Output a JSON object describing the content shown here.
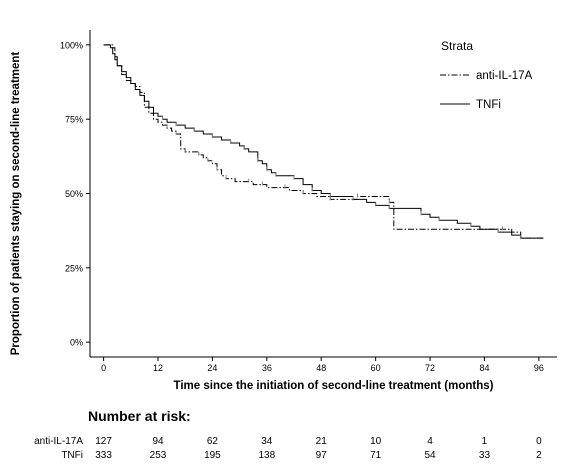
{
  "chart_data": {
    "type": "line",
    "subtype": "kaplan-meier",
    "xlabel": "Time since the initiation of second-line treatment (months)",
    "ylabel": "Proportion of patients staying on second-line treatment",
    "xlim": [
      -3,
      100
    ],
    "ylim": [
      -0.05,
      1.05
    ],
    "xticks": [
      0,
      12,
      24,
      36,
      48,
      60,
      72,
      84,
      96
    ],
    "yticks": [
      0,
      0.25,
      0.5,
      0.75,
      1.0
    ],
    "ytick_labels": [
      "0%",
      "25%",
      "50%",
      "75%",
      "100%"
    ],
    "grid": false,
    "legend": {
      "title": "Strata",
      "placement": "top-right",
      "entries": [
        {
          "label": "anti-IL-17A",
          "style": "dashdot"
        },
        {
          "label": "TNFi",
          "style": "solid"
        }
      ]
    },
    "series": [
      {
        "name": "anti-IL-17A",
        "style": "dashdot",
        "points": [
          [
            0,
            1.0
          ],
          [
            2,
            0.99
          ],
          [
            2.5,
            0.96
          ],
          [
            3,
            0.93
          ],
          [
            4,
            0.9
          ],
          [
            5,
            0.88
          ],
          [
            6,
            0.87
          ],
          [
            7,
            0.86
          ],
          [
            8,
            0.84
          ],
          [
            9,
            0.79
          ],
          [
            10,
            0.77
          ],
          [
            11,
            0.75
          ],
          [
            12,
            0.74
          ],
          [
            13,
            0.73
          ],
          [
            14,
            0.72
          ],
          [
            15,
            0.71
          ],
          [
            16,
            0.7
          ],
          [
            17,
            0.65
          ],
          [
            18,
            0.64
          ],
          [
            20,
            0.64
          ],
          [
            21,
            0.63
          ],
          [
            22,
            0.62
          ],
          [
            23,
            0.61
          ],
          [
            24,
            0.6
          ],
          [
            25,
            0.58
          ],
          [
            26,
            0.56
          ],
          [
            27,
            0.55
          ],
          [
            29,
            0.54
          ],
          [
            32,
            0.54
          ],
          [
            33,
            0.53
          ],
          [
            35,
            0.53
          ],
          [
            36,
            0.52
          ],
          [
            40,
            0.52
          ],
          [
            41,
            0.51
          ],
          [
            44,
            0.5
          ],
          [
            47,
            0.49
          ],
          [
            50,
            0.48
          ],
          [
            55,
            0.48
          ],
          [
            56,
            0.49
          ],
          [
            62,
            0.49
          ],
          [
            63,
            0.47
          ],
          [
            64,
            0.38
          ],
          [
            88,
            0.38
          ],
          [
            90,
            0.37
          ],
          [
            92,
            0.35
          ],
          [
            97,
            0.35
          ]
        ]
      },
      {
        "name": "TNFi",
        "style": "solid",
        "points": [
          [
            0,
            1.0
          ],
          [
            1.5,
            0.99
          ],
          [
            2,
            0.97
          ],
          [
            2.5,
            0.95
          ],
          [
            3,
            0.93
          ],
          [
            4,
            0.91
          ],
          [
            5,
            0.89
          ],
          [
            6,
            0.87
          ],
          [
            7,
            0.85
          ],
          [
            8,
            0.83
          ],
          [
            9,
            0.81
          ],
          [
            10,
            0.79
          ],
          [
            11,
            0.77
          ],
          [
            12,
            0.76
          ],
          [
            13,
            0.75
          ],
          [
            14,
            0.74
          ],
          [
            16,
            0.73
          ],
          [
            18,
            0.72
          ],
          [
            20,
            0.71
          ],
          [
            22,
            0.7
          ],
          [
            24,
            0.69
          ],
          [
            26,
            0.68
          ],
          [
            28,
            0.67
          ],
          [
            30,
            0.66
          ],
          [
            31,
            0.65
          ],
          [
            32,
            0.64
          ],
          [
            34,
            0.61
          ],
          [
            35,
            0.6
          ],
          [
            36,
            0.58
          ],
          [
            37,
            0.57
          ],
          [
            38,
            0.56
          ],
          [
            40,
            0.56
          ],
          [
            42,
            0.55
          ],
          [
            44,
            0.53
          ],
          [
            46,
            0.51
          ],
          [
            48,
            0.5
          ],
          [
            50,
            0.49
          ],
          [
            52,
            0.49
          ],
          [
            55,
            0.48
          ],
          [
            58,
            0.47
          ],
          [
            60,
            0.46
          ],
          [
            62,
            0.46
          ],
          [
            63,
            0.45
          ],
          [
            68,
            0.45
          ],
          [
            70,
            0.43
          ],
          [
            72,
            0.42
          ],
          [
            74,
            0.41
          ],
          [
            78,
            0.4
          ],
          [
            81,
            0.39
          ],
          [
            83,
            0.38
          ],
          [
            87,
            0.37
          ],
          [
            90,
            0.36
          ],
          [
            92,
            0.35
          ],
          [
            97,
            0.35
          ]
        ]
      }
    ],
    "risk_table": {
      "title": "Number at risk:",
      "times": [
        0,
        12,
        24,
        36,
        48,
        60,
        72,
        84,
        96
      ],
      "rows": [
        {
          "name": "anti-IL-17A",
          "values": [
            "127",
            "94",
            "62",
            "34",
            "21",
            "10",
            "4",
            "1",
            "0"
          ]
        },
        {
          "name": "TNFi",
          "values": [
            "333",
            "253",
            "195",
            "138",
            "97",
            "71",
            "54",
            "33",
            "2"
          ]
        }
      ]
    }
  }
}
